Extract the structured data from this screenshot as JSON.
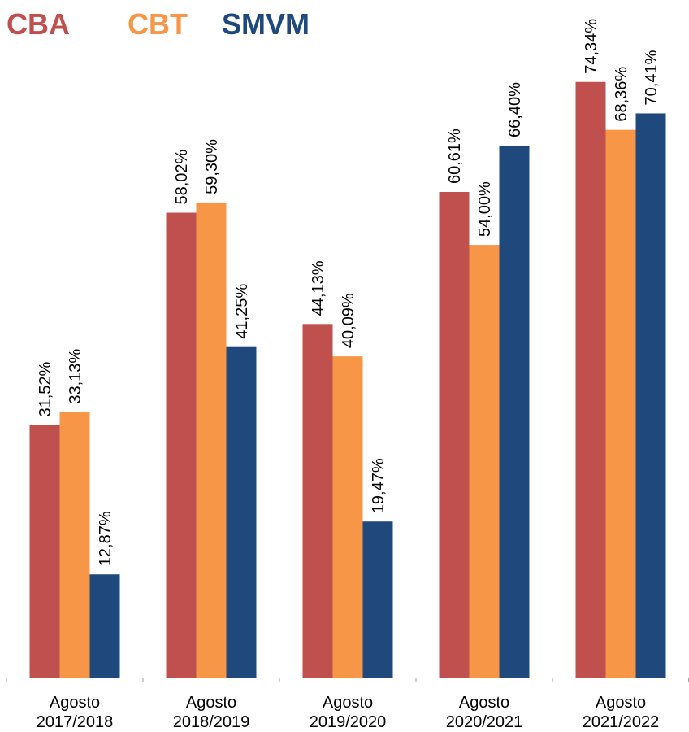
{
  "chart_data": {
    "type": "bar",
    "title": "",
    "xlabel": "",
    "ylabel": "",
    "ylim": [
      0,
      80
    ],
    "grid": false,
    "legend_position": "top-left",
    "categories": [
      [
        "Agosto",
        "2017/2018"
      ],
      [
        "Agosto",
        "2018/2019"
      ],
      [
        "Agosto",
        "2019/2020"
      ],
      [
        "Agosto",
        "2020/2021"
      ],
      [
        "Agosto",
        "2021/2022"
      ]
    ],
    "series": [
      {
        "name": "CBA",
        "color": "#C0504D",
        "values": [
          31.52,
          58.02,
          44.13,
          60.61,
          74.34
        ],
        "labels": [
          "31,52%",
          "58,02%",
          "44,13%",
          "60,61%",
          "74,34%"
        ]
      },
      {
        "name": "CBT",
        "color": "#F79646",
        "values": [
          33.13,
          59.3,
          40.09,
          54.0,
          68.36
        ],
        "labels": [
          "33,13%",
          "59,30%",
          "40,09%",
          "54,00%",
          "68,36%"
        ]
      },
      {
        "name": "SMVM",
        "color": "#1F497D",
        "values": [
          12.87,
          41.25,
          19.47,
          66.4,
          70.41
        ],
        "labels": [
          "12,87%",
          "41,25%",
          "19,47%",
          "66,40%",
          "70,41%"
        ]
      }
    ]
  }
}
